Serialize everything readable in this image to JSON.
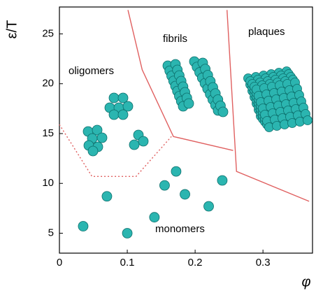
{
  "chart_data": {
    "type": "line",
    "ylabel": "ε/T",
    "xlabel": "φ",
    "xlim": [
      0,
      0.373
    ],
    "ylim": [
      3.0,
      27.7
    ],
    "xticks": [
      0,
      0.1,
      0.2,
      0.3
    ],
    "yticks": [
      5,
      10,
      15,
      20,
      25
    ],
    "annotations": [
      "oligomers",
      "fibrils",
      "plaques",
      "monomers"
    ],
    "series": [
      {
        "style": "solid",
        "color": "#e06060",
        "x": [
          0.101,
          0.122,
          0.168,
          0.256
        ],
        "values": [
          27.4,
          21.4,
          14.7,
          13.3
        ]
      },
      {
        "style": "solid",
        "color": "#e06060",
        "x": [
          0.247,
          0.261,
          0.368
        ],
        "values": [
          27.4,
          11.2,
          8.2
        ]
      },
      {
        "style": "dotted",
        "color": "#e06060",
        "x": [
          0,
          0.048,
          0.113,
          0.165
        ],
        "values": [
          15.9,
          10.7,
          10.7,
          14.7
        ]
      },
      {
        "style": "markers",
        "color": "#2bb5b0",
        "x": [
          0.035,
          0.07,
          0.1,
          0.14,
          0.155,
          0.172,
          0.185,
          0.22,
          0.24
        ],
        "values": [
          5.7,
          8.7,
          5.0,
          6.6,
          9.8,
          11.2,
          8.9,
          7.7,
          10.3
        ]
      }
    ]
  }
}
